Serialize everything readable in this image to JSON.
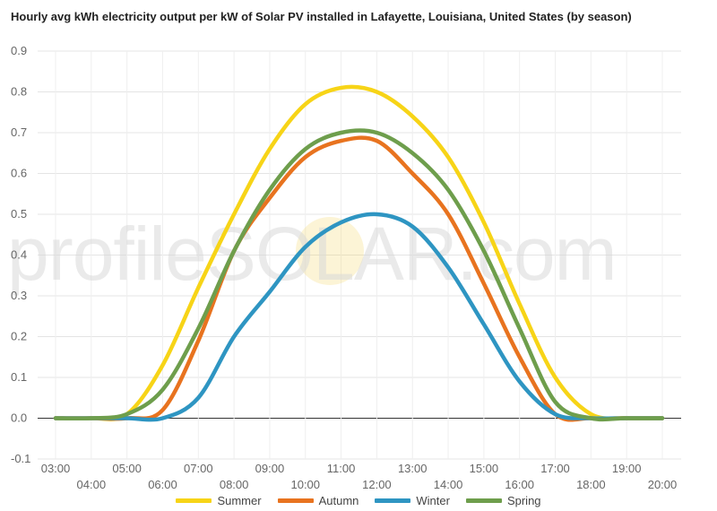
{
  "watermark": "profileSOLAR.com",
  "chart_data": {
    "type": "line",
    "title": "Hourly avg kWh electricity output per kW of Solar PV installed in Lafayette, Louisiana, United States (by season)",
    "xlabel": "",
    "ylabel": "",
    "ylim": [
      -0.1,
      0.9
    ],
    "yticks": [
      "0.9",
      "0.8",
      "0.7",
      "0.6",
      "0.5",
      "0.4",
      "0.3",
      "0.2",
      "0.1",
      "0.0",
      "-0.1"
    ],
    "grid": true,
    "legend_position": "bottom",
    "categories": [
      "03:00",
      "04:00",
      "05:00",
      "06:00",
      "07:00",
      "08:00",
      "09:00",
      "10:00",
      "11:00",
      "12:00",
      "13:00",
      "14:00",
      "15:00",
      "16:00",
      "17:00",
      "18:00",
      "19:00",
      "20:00"
    ],
    "series": [
      {
        "name": "Summer",
        "color": "#f7d417",
        "values": [
          0.0,
          0.0,
          0.01,
          0.13,
          0.32,
          0.5,
          0.66,
          0.77,
          0.81,
          0.8,
          0.74,
          0.64,
          0.48,
          0.28,
          0.1,
          0.01,
          0.0,
          0.0
        ]
      },
      {
        "name": "Autumn",
        "color": "#e8731f",
        "values": [
          0.0,
          0.0,
          0.0,
          0.02,
          0.19,
          0.41,
          0.54,
          0.64,
          0.68,
          0.68,
          0.6,
          0.5,
          0.33,
          0.15,
          0.01,
          0.0,
          0.0,
          0.0
        ]
      },
      {
        "name": "Winter",
        "color": "#2e95c2",
        "values": [
          0.0,
          0.0,
          0.0,
          0.0,
          0.05,
          0.2,
          0.31,
          0.42,
          0.48,
          0.5,
          0.47,
          0.37,
          0.23,
          0.09,
          0.01,
          0.0,
          0.0,
          0.0
        ]
      },
      {
        "name": "Spring",
        "color": "#6e9e4c",
        "values": [
          0.0,
          0.0,
          0.01,
          0.07,
          0.22,
          0.41,
          0.56,
          0.66,
          0.7,
          0.7,
          0.65,
          0.56,
          0.41,
          0.22,
          0.04,
          0.0,
          0.0,
          0.0
        ]
      }
    ]
  }
}
